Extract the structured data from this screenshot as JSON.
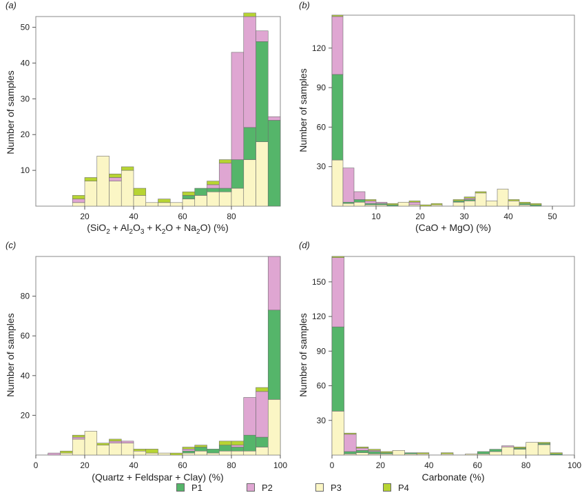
{
  "colors": {
    "P1": "#55b56a",
    "P2": "#dfa6d2",
    "P3": "#fbf6c5",
    "P4": "#b7d433"
  },
  "legend": {
    "P1": {
      "label": "P1",
      "color": "#55b56a"
    },
    "P2": {
      "label": "P2",
      "color": "#dfa6d2"
    },
    "P3": {
      "label": "P3",
      "color": "#fbf6c5"
    },
    "P4": {
      "label": "P4",
      "color": "#b7d433"
    }
  },
  "chart_data": [
    {
      "type": "bar",
      "stacked": true,
      "panel": "(a)",
      "xlabel": "(SiO2 + Al2O3 + K2O + Na2O) (%)",
      "xlabel_parts": [
        "(SiO",
        "2",
        " + Al",
        "2",
        "O",
        "3",
        " + K",
        "2",
        "O + Na",
        "2",
        "O) (%)"
      ],
      "ylabel": "Number of samples",
      "xlim": [
        0,
        100
      ],
      "ylim": [
        0,
        53
      ],
      "bin_width": 5,
      "xticks": [
        20,
        40,
        60,
        80
      ],
      "yticks": [
        10,
        20,
        30,
        40,
        50
      ],
      "x_tick_labels": [
        "20",
        "40",
        "60",
        "80"
      ],
      "y_tick_labels": [
        "10",
        "20",
        "30",
        "40",
        "50"
      ],
      "bin_starts": [
        15,
        20,
        25,
        30,
        35,
        40,
        45,
        50,
        55,
        60,
        65,
        70,
        75,
        80,
        85,
        90,
        95
      ],
      "series": [
        {
          "name": "P3",
          "values": [
            1,
            7,
            14,
            7,
            10,
            3,
            1,
            1,
            1,
            2,
            3,
            4,
            4,
            5,
            13,
            18,
            0
          ]
        },
        {
          "name": "P1",
          "values": [
            0,
            0,
            0,
            0,
            0,
            0,
            0,
            0,
            0,
            1,
            2,
            1,
            1,
            8,
            9,
            28,
            24
          ]
        },
        {
          "name": "P2",
          "values": [
            1,
            0,
            0,
            1,
            0,
            0,
            0,
            0,
            0,
            0,
            0,
            1,
            7,
            30,
            31,
            3,
            1
          ]
        },
        {
          "name": "P4",
          "values": [
            1,
            1,
            0,
            1,
            1,
            2,
            0,
            1,
            0,
            1,
            0,
            1,
            1,
            0,
            1,
            0,
            0
          ]
        }
      ]
    },
    {
      "type": "bar",
      "stacked": true,
      "panel": "(b)",
      "xlabel": "(CaO + MgO) (%)",
      "xlabel_parts": [
        "(CaO + MgO) (%)"
      ],
      "ylabel": "Number of samples",
      "xlim": [
        0,
        55
      ],
      "ylim": [
        0,
        145
      ],
      "bin_width": 2.5,
      "xticks": [
        10,
        20,
        30,
        40,
        50
      ],
      "yticks": [
        30,
        60,
        90,
        120
      ],
      "x_tick_labels": [
        "10",
        "20",
        "30",
        "40",
        "50"
      ],
      "y_tick_labels": [
        "30",
        "60",
        "90",
        "120"
      ],
      "bin_starts": [
        0,
        2.5,
        5,
        7.5,
        10,
        12.5,
        15,
        17.5,
        20,
        22.5,
        25,
        27.5,
        30,
        32.5,
        35,
        37.5,
        40,
        42.5,
        45
      ],
      "series": [
        {
          "name": "P3",
          "values": [
            35,
            2,
            3,
            1,
            1,
            0,
            3,
            1,
            0,
            1,
            0,
            3,
            4,
            10,
            4,
            13,
            4,
            1,
            0
          ]
        },
        {
          "name": "P1",
          "values": [
            65,
            1,
            2,
            1,
            1,
            1,
            0,
            0,
            0,
            0,
            0,
            1,
            1,
            0,
            0,
            0,
            0,
            1,
            1
          ]
        },
        {
          "name": "P2",
          "values": [
            44,
            26,
            6,
            2,
            1,
            0,
            0,
            2,
            0,
            0,
            0,
            0,
            1,
            0,
            0,
            0,
            0,
            0,
            0
          ]
        },
        {
          "name": "P4",
          "values": [
            1,
            0,
            0,
            1,
            0,
            1,
            0,
            1,
            1,
            1,
            0,
            1,
            1,
            1,
            0,
            0,
            1,
            1,
            1
          ]
        }
      ]
    },
    {
      "type": "bar",
      "stacked": true,
      "panel": "(c)",
      "xlabel": "(Quartz + Feldspar + Clay) (%)",
      "xlabel_parts": [
        "(Quartz + Feldspar + Clay) (%)"
      ],
      "ylabel": "Number of samples",
      "xlim": [
        0,
        100
      ],
      "ylim": [
        0,
        100
      ],
      "bin_width": 5,
      "xticks": [
        0,
        20,
        40,
        60,
        80,
        100
      ],
      "yticks": [
        20,
        40,
        60,
        80
      ],
      "x_tick_labels": [
        "0",
        "20",
        "40",
        "60",
        "80",
        "100"
      ],
      "y_tick_labels": [
        "20",
        "40",
        "60",
        "80"
      ],
      "bin_starts": [
        5,
        10,
        15,
        20,
        25,
        30,
        35,
        40,
        45,
        50,
        55,
        60,
        65,
        70,
        75,
        80,
        85,
        90,
        95
      ],
      "series": [
        {
          "name": "P3",
          "values": [
            0,
            1,
            8,
            12,
            5,
            6,
            6,
            2,
            1,
            1,
            0,
            1,
            2,
            1,
            2,
            2,
            2,
            4,
            28
          ]
        },
        {
          "name": "P1",
          "values": [
            0,
            0,
            0,
            0,
            0,
            0,
            0,
            0,
            0,
            0,
            0,
            1,
            2,
            2,
            3,
            2,
            8,
            5,
            45
          ]
        },
        {
          "name": "P2",
          "values": [
            1,
            0,
            1,
            0,
            0,
            1,
            1,
            0,
            0,
            0,
            0,
            1,
            0,
            0,
            0,
            1,
            19,
            23,
            27
          ]
        },
        {
          "name": "P4",
          "values": [
            0,
            1,
            1,
            0,
            1,
            1,
            0,
            1,
            2,
            0,
            1,
            1,
            1,
            0,
            2,
            2,
            0,
            2,
            0
          ]
        }
      ]
    },
    {
      "type": "bar",
      "stacked": true,
      "panel": "(d)",
      "xlabel": "Carbonate (%)",
      "xlabel_parts": [
        "Carbonate (%)"
      ],
      "ylabel": "Number of samples",
      "xlim": [
        0,
        100
      ],
      "ylim": [
        0,
        172
      ],
      "bin_width": 5,
      "xticks": [
        0,
        20,
        40,
        60,
        80,
        100
      ],
      "yticks": [
        30,
        60,
        90,
        120,
        150
      ],
      "x_tick_labels": [
        "0",
        "20",
        "40",
        "60",
        "80",
        "100"
      ],
      "y_tick_labels": [
        "30",
        "60",
        "90",
        "120",
        "150"
      ],
      "bin_starts": [
        0,
        5,
        10,
        15,
        20,
        25,
        30,
        35,
        40,
        45,
        50,
        55,
        60,
        65,
        70,
        75,
        80,
        85,
        90
      ],
      "series": [
        {
          "name": "P3",
          "values": [
            38,
            1,
            2,
            1,
            1,
            4,
            1,
            1,
            0,
            1,
            0,
            1,
            1,
            3,
            7,
            5,
            11,
            9,
            0
          ]
        },
        {
          "name": "P1",
          "values": [
            73,
            2,
            2,
            2,
            1,
            0,
            1,
            0,
            0,
            0,
            0,
            0,
            2,
            2,
            0,
            1,
            0,
            1,
            1
          ]
        },
        {
          "name": "P2",
          "values": [
            60,
            15,
            2,
            1,
            0,
            0,
            0,
            0,
            0,
            0,
            0,
            0,
            0,
            0,
            1,
            0,
            0,
            0,
            0
          ]
        },
        {
          "name": "P4",
          "values": [
            1,
            1,
            1,
            1,
            1,
            0,
            0,
            1,
            0,
            1,
            0,
            0,
            0,
            0,
            0,
            1,
            0,
            1,
            1
          ]
        }
      ]
    }
  ]
}
